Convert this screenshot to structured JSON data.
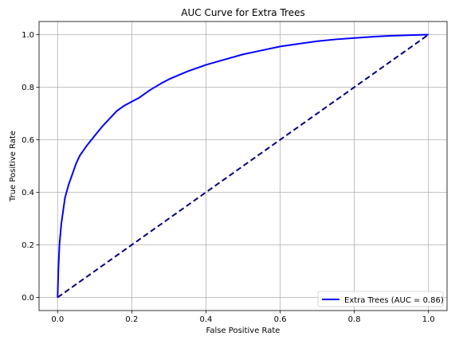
{
  "chart_data": {
    "type": "line",
    "title": "AUC Curve for Extra Trees",
    "xlabel": "False Positive Rate",
    "ylabel": "True Positive Rate",
    "xlim": [
      -0.05,
      1.05
    ],
    "ylim": [
      -0.05,
      1.05
    ],
    "xticks": [
      0.0,
      0.2,
      0.4,
      0.6,
      0.8,
      1.0
    ],
    "yticks": [
      0.0,
      0.2,
      0.4,
      0.6,
      0.8,
      1.0
    ],
    "xtick_labels": [
      "0.0",
      "0.2",
      "0.4",
      "0.6",
      "0.8",
      "1.0"
    ],
    "ytick_labels": [
      "0.0",
      "0.2",
      "0.4",
      "0.6",
      "0.8",
      "1.0"
    ],
    "grid": true,
    "legend_position": "lower right",
    "series": [
      {
        "name": "Extra Trees (AUC = 0.86)",
        "color": "#0000ff",
        "style": "solid",
        "x": [
          0.0,
          0.002,
          0.005,
          0.01,
          0.015,
          0.02,
          0.03,
          0.04,
          0.05,
          0.06,
          0.07,
          0.08,
          0.1,
          0.12,
          0.14,
          0.16,
          0.18,
          0.2,
          0.22,
          0.25,
          0.28,
          0.3,
          0.35,
          0.4,
          0.45,
          0.5,
          0.55,
          0.6,
          0.65,
          0.7,
          0.75,
          0.8,
          0.85,
          0.9,
          0.95,
          1.0
        ],
        "y": [
          0.0,
          0.1,
          0.2,
          0.28,
          0.33,
          0.38,
          0.43,
          0.47,
          0.51,
          0.54,
          0.56,
          0.58,
          0.615,
          0.65,
          0.68,
          0.71,
          0.73,
          0.745,
          0.76,
          0.79,
          0.815,
          0.83,
          0.86,
          0.885,
          0.905,
          0.925,
          0.94,
          0.955,
          0.965,
          0.975,
          0.982,
          0.987,
          0.992,
          0.996,
          0.998,
          1.0
        ]
      },
      {
        "name": "",
        "color": "#000080",
        "style": "dashed",
        "x": [
          0.0,
          1.0
        ],
        "y": [
          0.0,
          1.0
        ]
      }
    ]
  }
}
